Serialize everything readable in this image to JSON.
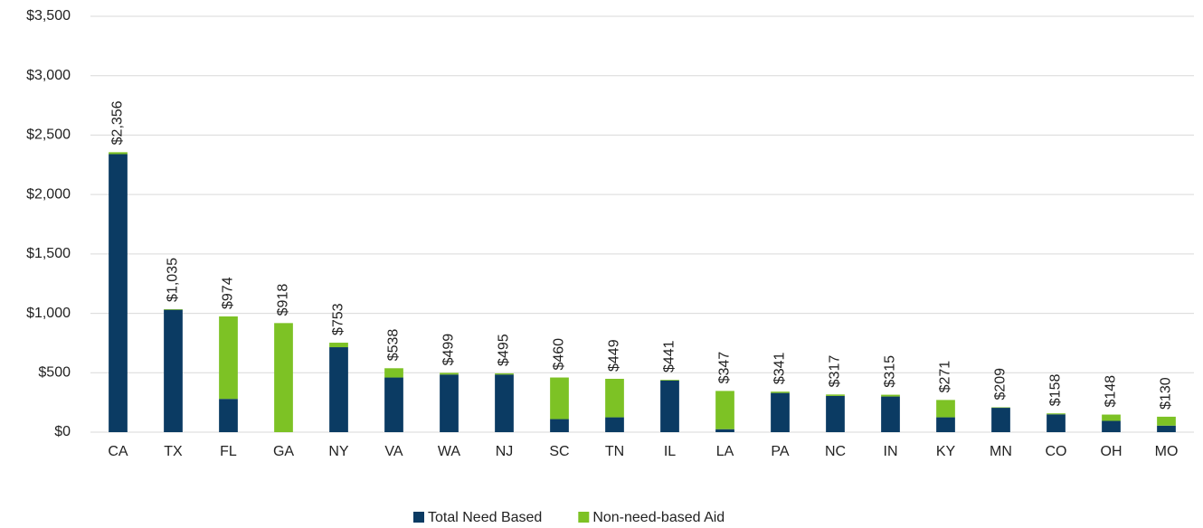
{
  "chart_data": {
    "type": "stacked_bar",
    "categories": [
      "CA",
      "TX",
      "FL",
      "GA",
      "NY",
      "VA",
      "WA",
      "NJ",
      "SC",
      "TN",
      "IL",
      "LA",
      "PA",
      "NC",
      "IN",
      "KY",
      "MN",
      "CO",
      "OH",
      "MO"
    ],
    "series": [
      {
        "name": "Total Need Based",
        "color": "#0b3b63",
        "values": [
          2340,
          1030,
          280,
          0,
          715,
          460,
          485,
          485,
          110,
          125,
          435,
          25,
          330,
          305,
          300,
          125,
          205,
          150,
          95,
          55
        ]
      },
      {
        "name": "Non-need-based Aid",
        "color": "#7dc225",
        "values": [
          16,
          5,
          694,
          918,
          38,
          78,
          14,
          10,
          350,
          324,
          6,
          322,
          11,
          12,
          15,
          146,
          4,
          8,
          53,
          75
        ]
      }
    ],
    "totals": [
      2356,
      1035,
      974,
      918,
      753,
      538,
      499,
      495,
      460,
      449,
      441,
      347,
      341,
      317,
      315,
      271,
      209,
      158,
      148,
      130
    ],
    "total_labels": [
      "$2,356",
      "$1,035",
      "$974",
      "$918",
      "$753",
      "$538",
      "$499",
      "$495",
      "$460",
      "$449",
      "$441",
      "$347",
      "$341",
      "$317",
      "$315",
      "$271",
      "$209",
      "$158",
      "$148",
      "$130"
    ],
    "ylim": [
      0,
      3500
    ],
    "yticks": [
      {
        "value": 0,
        "label": "$0"
      },
      {
        "value": 500,
        "label": "$500"
      },
      {
        "value": 1000,
        "label": "$1,000"
      },
      {
        "value": 1500,
        "label": "$1,500"
      },
      {
        "value": 2000,
        "label": "$2,000"
      },
      {
        "value": 2500,
        "label": "$2,500"
      },
      {
        "value": 3000,
        "label": "$3,000"
      },
      {
        "value": 3500,
        "label": "$3,500"
      }
    ],
    "grid": true,
    "legend": "bottom"
  }
}
